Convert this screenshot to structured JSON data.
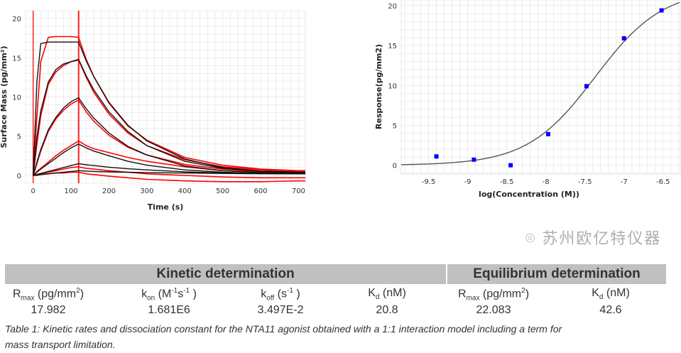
{
  "chart_data": [
    {
      "type": "line",
      "xlabel": "Time (s)",
      "ylabel": "Surface Mass (pg/mm²)",
      "xlim": [
        -20,
        718
      ],
      "ylim": [
        -1.0,
        21
      ],
      "xticks": [
        0,
        100,
        200,
        300,
        400,
        500,
        600,
        700
      ],
      "yticks": [
        0,
        5,
        10,
        15,
        20
      ],
      "grid": true,
      "injection_markers": [
        0,
        120
      ],
      "x": [
        0,
        10,
        20,
        40,
        60,
        80,
        100,
        120,
        140,
        160,
        200,
        250,
        300,
        400,
        500,
        600,
        700,
        718
      ],
      "series": [
        {
          "kind": "fit",
          "values": [
            0,
            12,
            16.8,
            17,
            17,
            17,
            17,
            17,
            14.6,
            12.6,
            9.3,
            6.4,
            4.4,
            2.1,
            1.0,
            0.55,
            0.4,
            0.4
          ]
        },
        {
          "kind": "fit",
          "values": [
            0,
            4.9,
            8.2,
            11.9,
            13.5,
            14.2,
            14.5,
            14.8,
            12.7,
            10.9,
            8.1,
            5.6,
            3.8,
            1.8,
            0.9,
            0.5,
            0.35,
            0.35
          ]
        },
        {
          "kind": "fit",
          "values": [
            0,
            1.7,
            3.3,
            5.8,
            7.4,
            8.6,
            9.4,
            9.9,
            8.5,
            7.3,
            5.4,
            3.7,
            2.6,
            1.2,
            0.6,
            0.35,
            0.25,
            0.25
          ]
        },
        {
          "kind": "fit",
          "values": [
            0,
            0.4,
            0.8,
            1.5,
            2.2,
            2.9,
            3.5,
            4.0,
            3.5,
            3.1,
            2.5,
            1.8,
            1.3,
            0.7,
            0.4,
            0.25,
            0.2,
            0.2
          ]
        },
        {
          "kind": "fit",
          "values": [
            0,
            0.12,
            0.25,
            0.5,
            0.75,
            1.0,
            1.25,
            1.5,
            1.35,
            1.25,
            1.05,
            0.85,
            0.7,
            0.45,
            0.3,
            0.25,
            0.2,
            0.2
          ]
        },
        {
          "kind": "fit",
          "values": [
            0,
            0.05,
            0.1,
            0.2,
            0.3,
            0.4,
            0.5,
            0.6,
            0.55,
            0.5,
            0.45,
            0.4,
            0.35,
            0.3,
            0.25,
            0.2,
            0.2,
            0.2
          ]
        },
        {
          "kind": "data",
          "values": [
            0,
            7.5,
            14.5,
            17.6,
            17.7,
            17.7,
            17.7,
            17.6,
            14.8,
            12.6,
            9.2,
            6.3,
            4.5,
            2.3,
            1.3,
            0.8,
            0.6,
            0.6
          ]
        },
        {
          "kind": "data",
          "values": [
            0,
            4,
            7.6,
            11.6,
            13.2,
            14.0,
            14.5,
            14.7,
            12.5,
            10.6,
            7.8,
            5.4,
            3.8,
            2.0,
            1.1,
            0.7,
            0.5,
            0.5
          ]
        },
        {
          "kind": "data",
          "values": [
            0,
            1.5,
            3.1,
            5.6,
            7.2,
            8.3,
            9.1,
            9.6,
            8.1,
            6.9,
            5.1,
            3.6,
            2.6,
            1.4,
            0.8,
            0.5,
            0.4,
            0.4
          ]
        },
        {
          "kind": "data",
          "values": [
            0,
            0.5,
            0.9,
            1.7,
            2.5,
            3.2,
            3.8,
            4.4,
            3.8,
            3.4,
            2.9,
            2.3,
            1.8,
            1.1,
            0.6,
            0.4,
            0.3,
            0.3
          ]
        },
        {
          "kind": "data",
          "values": [
            0,
            0.1,
            0.2,
            0.4,
            0.6,
            0.8,
            1.0,
            1.1,
            0.9,
            0.8,
            0.6,
            0.4,
            0.2,
            0,
            -0.2,
            -0.3,
            -0.3,
            -0.3
          ]
        },
        {
          "kind": "data",
          "values": [
            0,
            0,
            0.1,
            0.2,
            0.3,
            0.3,
            0.4,
            0.4,
            0.2,
            0.1,
            -0.1,
            -0.3,
            -0.5,
            -0.7,
            -0.8,
            -0.8,
            -0.7,
            -0.7
          ]
        }
      ],
      "colors": {
        "fit": "#111111",
        "data": "#ff0000",
        "marker": "#ff2020"
      }
    },
    {
      "type": "scatter",
      "xlabel": "log(Concentration (M))",
      "ylabel": "Response(pg/mm2)",
      "xlim": [
        -9.85,
        -6.28
      ],
      "ylim": [
        -1.1,
        20.7
      ],
      "xticks": [
        -9.5,
        -9,
        -8.5,
        -8,
        -7.5,
        -7,
        -6.5
      ],
      "xtick_labels": [
        "-9.5",
        "-9",
        "-8.5",
        "-8",
        "-7.5",
        "-7",
        "-6.5"
      ],
      "yticks": [
        0,
        5,
        10,
        15,
        20
      ],
      "grid": true,
      "x": [
        -9.4,
        -8.92,
        -8.45,
        -7.97,
        -7.48,
        -7.0,
        -6.52
      ],
      "y": [
        1.1,
        0.7,
        0.0,
        3.9,
        9.9,
        15.9,
        19.4
      ],
      "fit": {
        "model": "1:1 binding isotherm",
        "Rmax": 22.083,
        "Kd_nM": 42.6
      },
      "colors": {
        "points": "#0000ff",
        "fit": "#555555"
      }
    }
  ],
  "table": {
    "groups": [
      "Kinetic determination",
      "Equilibrium determination"
    ],
    "headers": [
      {
        "main": "R",
        "sub": "max",
        "rest": " (pg/mm",
        "sup": "2",
        "end": ")"
      },
      {
        "main": "k",
        "sub": "on",
        "rest": " (M",
        "sup": "-1",
        "end": "s",
        "sup2": "-1",
        "end2": " )"
      },
      {
        "main": "k",
        "sub": "off",
        "rest": " (s",
        "sup": "-1",
        "end": " )"
      },
      {
        "main": "K",
        "sub": "d",
        "rest": " (nM)"
      },
      {
        "main": "R",
        "sub": "max",
        "rest": " (pg/mm",
        "sup": "2",
        "end": ")"
      },
      {
        "main": "K",
        "sub": "d",
        "rest": " (nM)"
      }
    ],
    "values": [
      "17.982",
      "1.681E6",
      "3.497E-2",
      "20.8",
      "22.083",
      "42.6"
    ]
  },
  "caption": {
    "line1": "Table 1: Kinetic rates and dissociation constant for the NTA11 agonist obtained with a 1:1 interaction model including a term for",
    "line2": "mass transport limitation."
  },
  "watermark": "苏州欧亿特仪器"
}
